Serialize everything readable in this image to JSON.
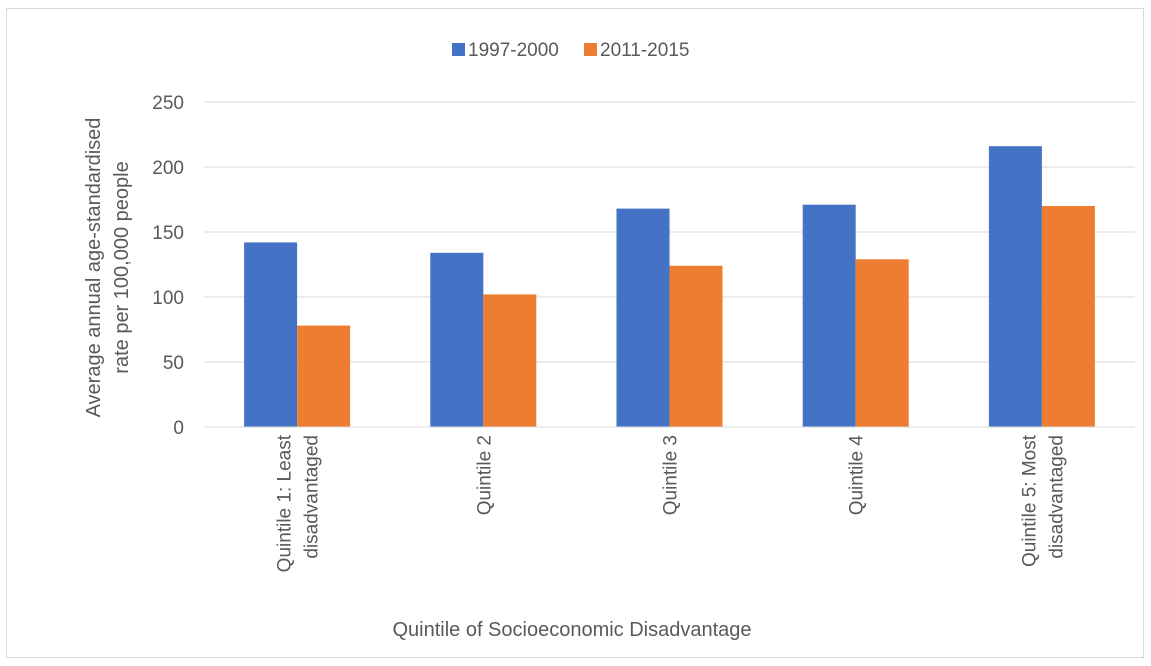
{
  "chart_data": {
    "type": "bar",
    "title": "",
    "xlabel": "Quintile of Socioeconomic Disadvantage",
    "ylabel_lines": [
      "Average annual age-standardised",
      "rate per 100,000 people"
    ],
    "ylim": [
      0,
      250
    ],
    "yticks": [
      0,
      50,
      100,
      150,
      200,
      250
    ],
    "grid": true,
    "legend_position": "top",
    "categories": [
      [
        "Quintile 1: Least",
        "disadvantaged"
      ],
      [
        "Quintile 2"
      ],
      [
        "Quintile 3"
      ],
      [
        "Quintile 4"
      ],
      [
        "Quintile 5: Most",
        "disadvantaged"
      ]
    ],
    "series": [
      {
        "name": "1997-2000",
        "color": "#4472c4",
        "values": [
          142,
          134,
          168,
          171,
          216
        ]
      },
      {
        "name": "2011-2015",
        "color": "#ed7d31",
        "values": [
          78,
          102,
          124,
          129,
          170
        ]
      }
    ]
  }
}
